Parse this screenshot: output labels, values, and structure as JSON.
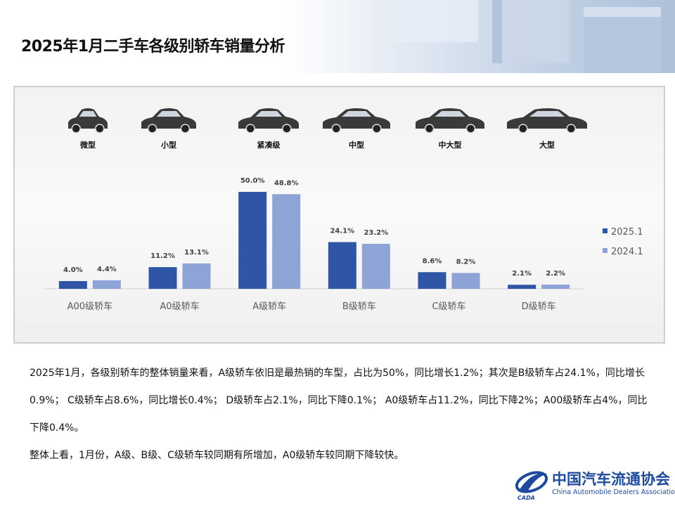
{
  "header": {
    "title": "2025年1月二手车各级别轿车销量分析"
  },
  "chart_data": {
    "type": "bar",
    "car_types": [
      "微型",
      "小型",
      "紧凑级",
      "中型",
      "中大型",
      "大型"
    ],
    "categories": [
      "A00级轿车",
      "A0级轿车",
      "A级轿车",
      "B级轿车",
      "C级轿车",
      "D级轿车"
    ],
    "series": [
      {
        "name": "2025.1",
        "color": "#2f56a6",
        "values": [
          4.0,
          11.2,
          50.0,
          24.1,
          8.6,
          2.1
        ],
        "value_labels": [
          "4.0%",
          "11.2%",
          "50.0%",
          "24.1%",
          "8.6%",
          "2.1%"
        ]
      },
      {
        "name": "2024.1",
        "color": "#8ea3d6",
        "values": [
          4.4,
          13.1,
          48.8,
          23.2,
          8.2,
          2.2
        ],
        "value_labels": [
          "4.4%",
          "13.1%",
          "48.8%",
          "23.2%",
          "8.2%",
          "2.2%"
        ]
      }
    ],
    "legend": "right"
  },
  "text": {
    "paragraphs": [
      "2025年1月，各级别轿车的整体销量来看，A级轿车依旧是最热销的车型，占比为50%，同比增长1.2%；其次是B级轿车占24.1%，同比增长0.9%； C级轿车占8.6%，同比增长0.4%； D级轿车占2.1%，同比下降0.1%； A0级轿车占11.2%，同比下降2%；A00级轿车占4%，同比下降0.4%。",
      "整体上看，1月份，A级、B级、C级轿车较同期有所增加，A0级轿车较同期下降较快。"
    ]
  },
  "logo": {
    "name_cn": "中国汽车流通协会",
    "name_en": "China Automobile Dealers Association",
    "abbr": "CADA"
  }
}
